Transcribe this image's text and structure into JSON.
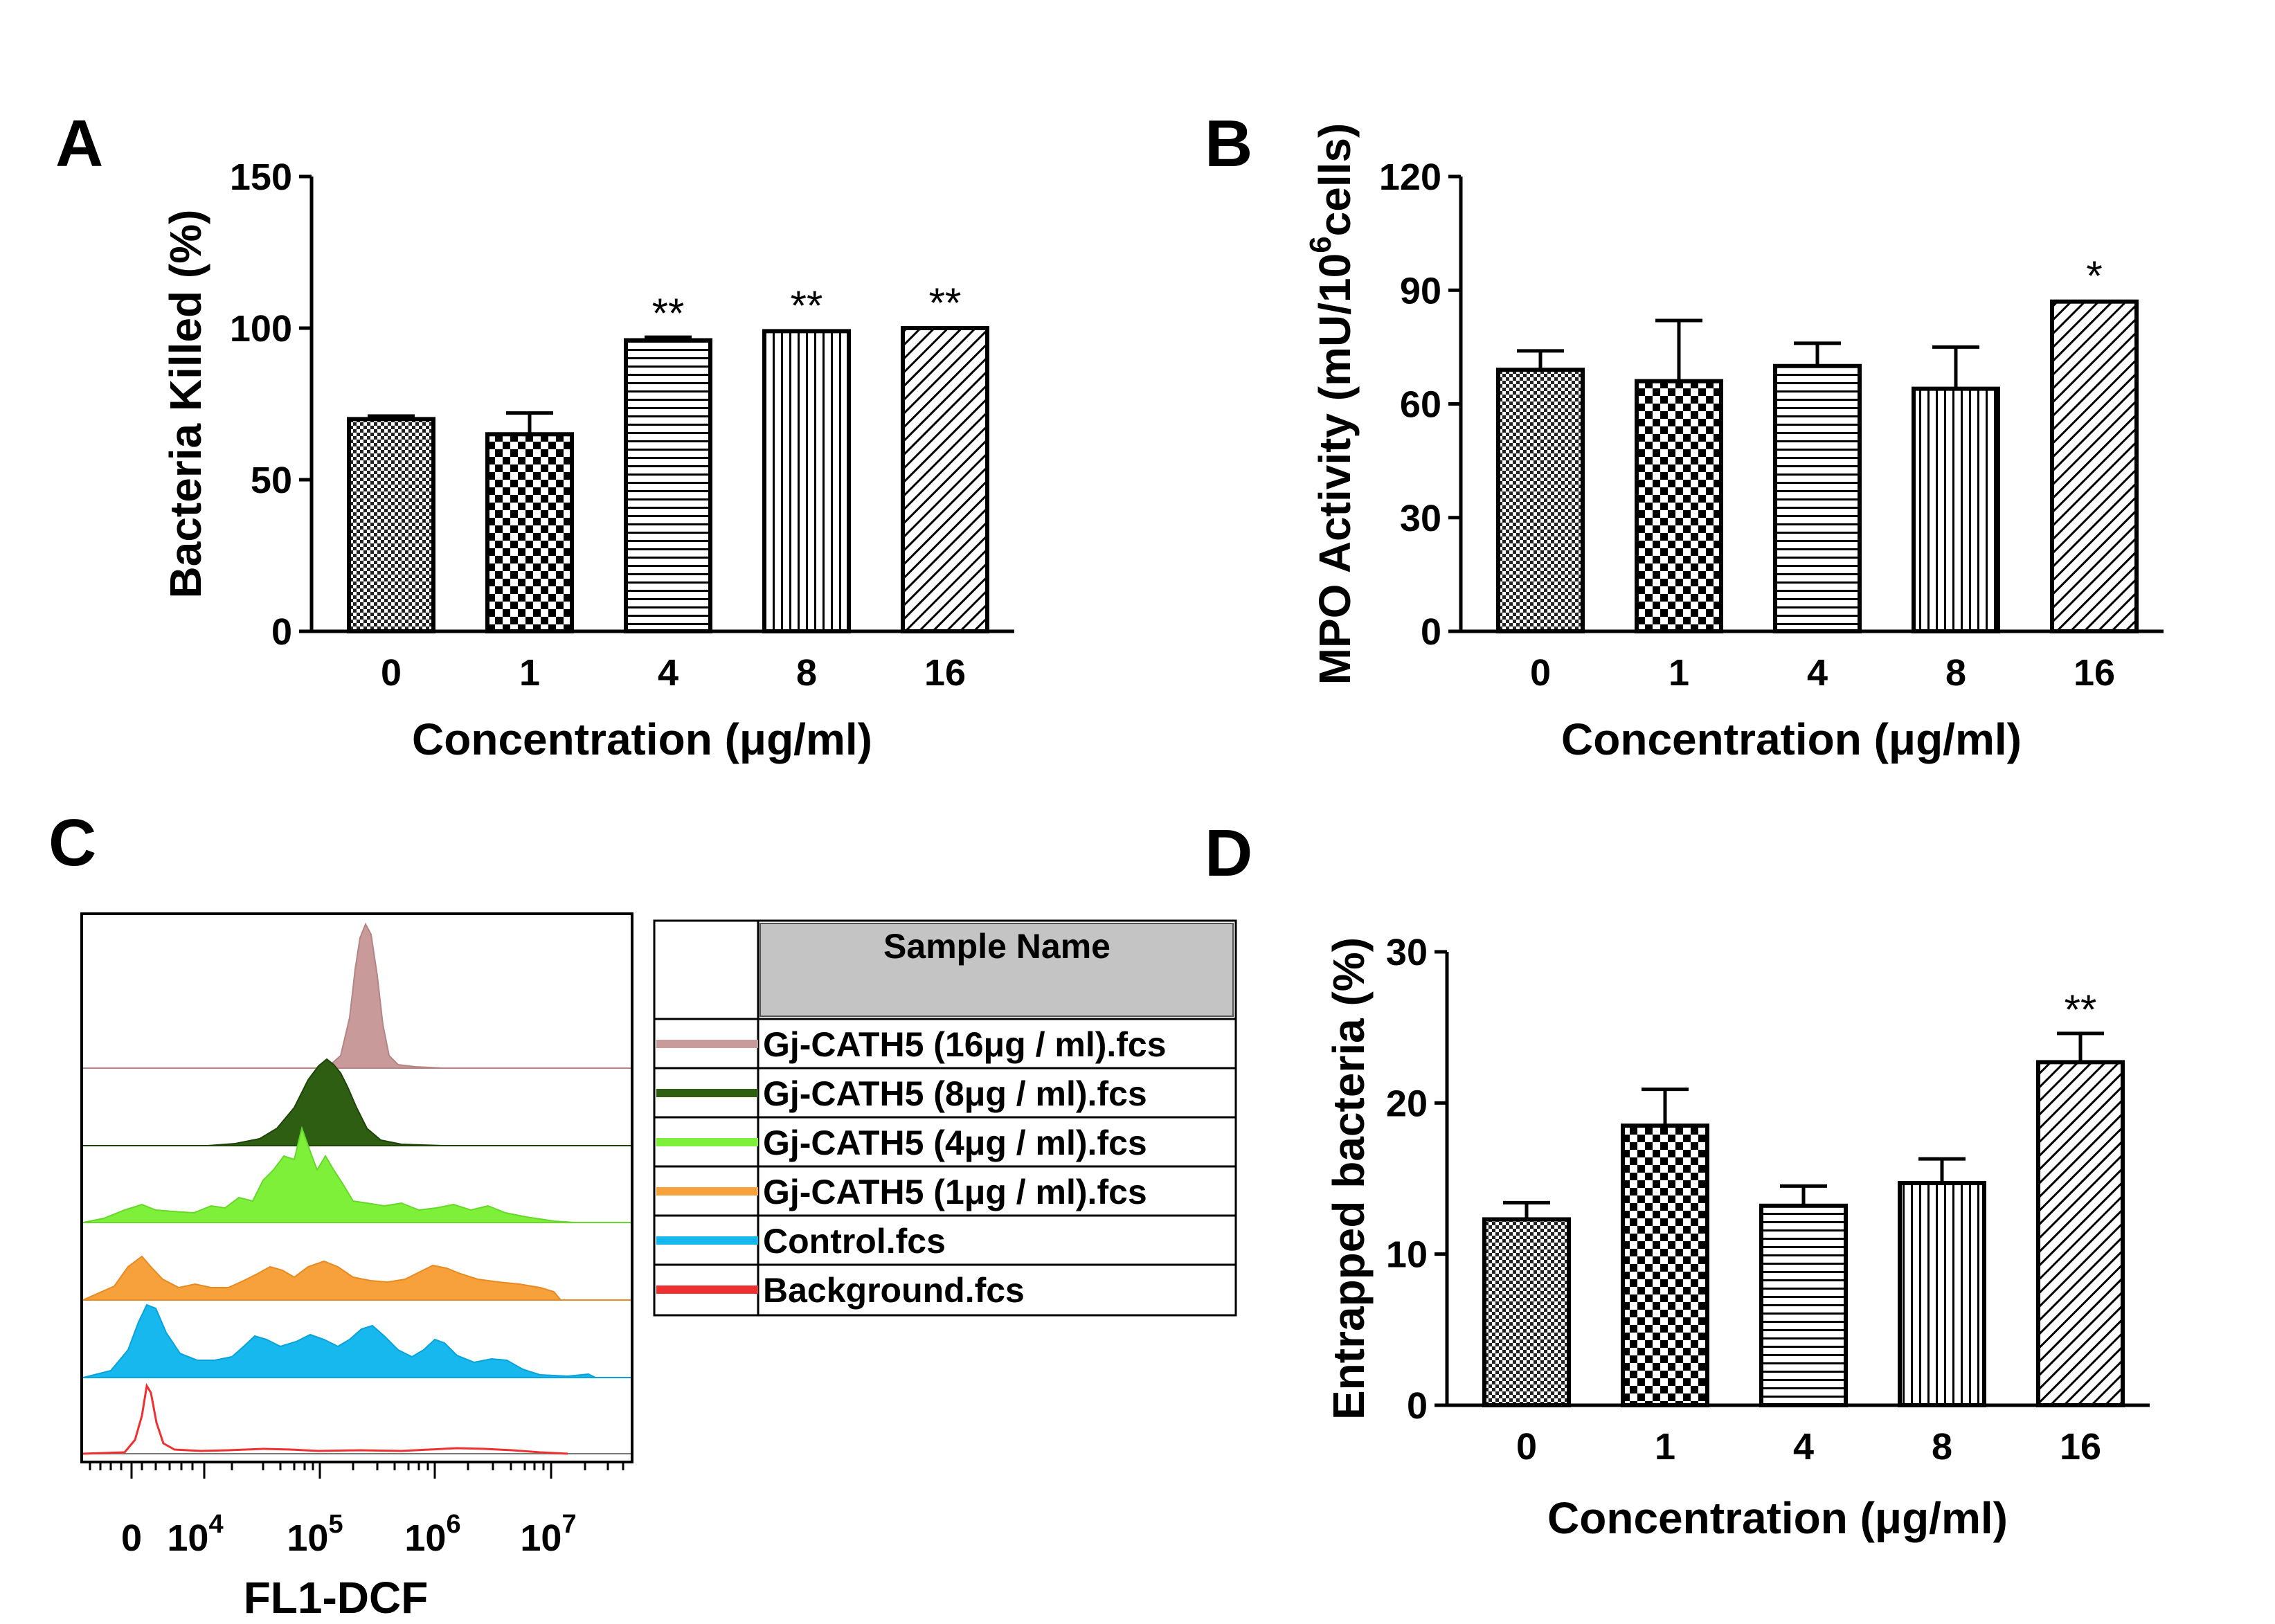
{
  "panel_labels": {
    "a": "A",
    "b": "B",
    "c": "C",
    "d": "D"
  },
  "chart_data": [
    {
      "id": "A",
      "type": "bar",
      "categories": [
        "0",
        "1",
        "4",
        "8",
        "16"
      ],
      "values": [
        70,
        65,
        96,
        99,
        100
      ],
      "errors": [
        1,
        7,
        1,
        0.5,
        0.5
      ],
      "significance": [
        "",
        "",
        "**",
        "**",
        "**"
      ],
      "patterns": [
        "fine-check",
        "checker",
        "hlines",
        "vlines",
        "diag"
      ],
      "xlabel": "Concentration (μg/ml)",
      "ylabel": "Bacteria Killed (%)",
      "ylim": [
        0,
        150
      ],
      "yticks": [
        "0",
        "50",
        "100",
        "150"
      ]
    },
    {
      "id": "B",
      "type": "bar",
      "categories": [
        "0",
        "1",
        "4",
        "8",
        "16"
      ],
      "values": [
        69,
        66,
        70,
        64,
        87
      ],
      "errors": [
        5,
        16,
        6,
        11,
        0.5
      ],
      "significance": [
        "",
        "",
        "",
        "",
        "*"
      ],
      "patterns": [
        "fine-check",
        "checker",
        "hlines",
        "vlines",
        "diag"
      ],
      "xlabel": "Concentration (μg/ml)",
      "ylabel": {
        "main": "MPO Activity (mU/10",
        "sup": "6",
        "tail": "cells)"
      },
      "ylim": [
        0,
        120
      ],
      "yticks": [
        "0",
        "30",
        "60",
        "90",
        "120"
      ]
    },
    {
      "id": "C",
      "type": "histogram-overlay",
      "xlabel": "FL1-DCF",
      "xticks": [
        {
          "base": "0",
          "exp": ""
        },
        {
          "base": "10",
          "exp": "4"
        },
        {
          "base": "10",
          "exp": "5"
        },
        {
          "base": "10",
          "exp": "6"
        },
        {
          "base": "10",
          "exp": "7"
        }
      ],
      "legend_header": "Sample Name",
      "series": [
        {
          "name": "Gj-CATH5 (16μg / ml).fcs",
          "color": "#c89a9a"
        },
        {
          "name": "Gj-CATH5 (8μg / ml).fcs",
          "color": "#2e5e12"
        },
        {
          "name": "Gj-CATH5 (4μg / ml).fcs",
          "color": "#7ef03a"
        },
        {
          "name": "Gj-CATH5 (1μg / ml).fcs",
          "color": "#f7a13c"
        },
        {
          "name": "Control.fcs",
          "color": "#16b8ee"
        },
        {
          "name": "Background.fcs",
          "color": "#ee3030"
        }
      ]
    },
    {
      "id": "D",
      "type": "bar",
      "categories": [
        "0",
        "1",
        "4",
        "8",
        "16"
      ],
      "values": [
        12.3,
        18.5,
        13.2,
        14.7,
        22.7
      ],
      "errors": [
        1.1,
        2.4,
        1.3,
        1.6,
        1.9
      ],
      "significance": [
        "",
        "",
        "",
        "",
        "**"
      ],
      "patterns": [
        "fine-check",
        "checker",
        "hlines",
        "vlines",
        "diag"
      ],
      "xlabel": "Concentration (μg/ml)",
      "ylabel": "Entrapped bacteria (%)",
      "ylim": [
        0,
        30
      ],
      "yticks": [
        "0",
        "10",
        "20",
        "30"
      ]
    }
  ]
}
